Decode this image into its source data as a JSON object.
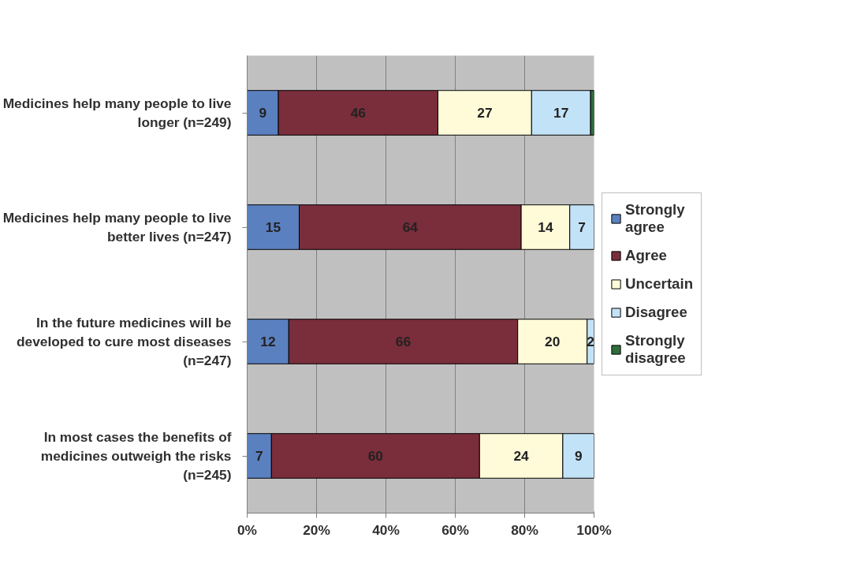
{
  "chart_data": {
    "type": "bar",
    "orientation": "horizontal",
    "stacked": true,
    "categories": [
      "Medicines help many people to live longer (n=249)",
      "Medicines help many people to live better lives (n=247)",
      "In the future medicines will be developed to cure most diseases (n=247)",
      "In most cases the benefits of medicines outweigh the risks (n=245)"
    ],
    "series": [
      {
        "name": "Strongly agree",
        "color": "#5b80c0",
        "values": [
          9,
          15,
          12,
          7
        ],
        "value_labels": [
          "9",
          "15",
          "12",
          "7"
        ]
      },
      {
        "name": "Agree",
        "color": "#7a2d3b",
        "values": [
          46,
          64,
          66,
          60
        ],
        "value_labels": [
          "46",
          "64",
          "66",
          "60"
        ]
      },
      {
        "name": "Uncertain",
        "color": "#fffbd8",
        "values": [
          27,
          14,
          20,
          24
        ],
        "value_labels": [
          "27",
          "14",
          "20",
          "24"
        ]
      },
      {
        "name": "Disagree",
        "color": "#c2e2f7",
        "values": [
          17,
          7,
          2,
          9
        ],
        "value_labels": [
          "17",
          "7",
          "2",
          "9"
        ]
      },
      {
        "name": "Strongly disagree",
        "color": "#2f6e3c",
        "values": [
          1,
          null,
          null,
          null
        ],
        "value_labels": [
          null,
          null,
          null,
          null
        ]
      }
    ],
    "xlim": [
      0,
      100
    ],
    "xticks": [
      {
        "value": 0,
        "label": "0%"
      },
      {
        "value": 20,
        "label": "20%"
      },
      {
        "value": 40,
        "label": "40%"
      },
      {
        "value": 60,
        "label": "60%"
      },
      {
        "value": 80,
        "label": "80%"
      },
      {
        "value": 100,
        "label": "100%"
      }
    ],
    "grid": "x",
    "legend": "right"
  }
}
